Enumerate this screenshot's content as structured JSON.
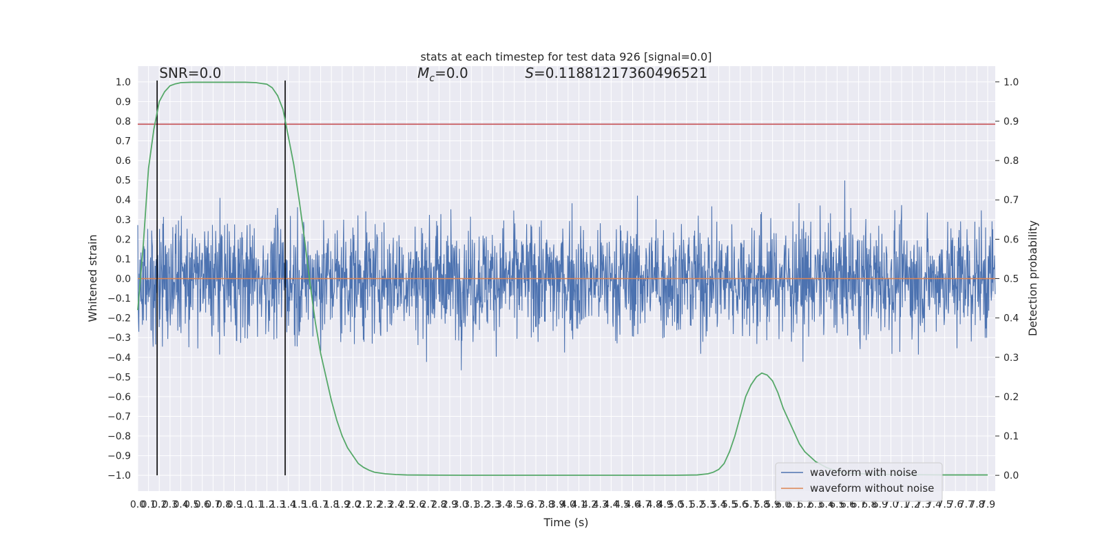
{
  "chart_data": {
    "type": "line",
    "title": "stats at each timestep for test data 926 [signal=0.0]",
    "xlabel": "Time (s)",
    "ylabel_left": "Whitened strain",
    "ylabel_right": "Detection probability",
    "xlim": [
      0.0,
      7.97
    ],
    "ylim_left": [
      -1.08,
      1.08
    ],
    "ylim_right": [
      -0.04,
      1.04
    ],
    "x_ticks": [
      0.0,
      0.1,
      0.2,
      0.3,
      0.4,
      0.5,
      0.6,
      0.7,
      0.8,
      0.9,
      1.0,
      1.1,
      1.2,
      1.3,
      1.4,
      1.5,
      1.6,
      1.7,
      1.8,
      1.9,
      2.0,
      2.1,
      2.2,
      2.3,
      2.4,
      2.5,
      2.6,
      2.7,
      2.8,
      2.9,
      3.0,
      3.1,
      3.2,
      3.3,
      3.4,
      3.5,
      3.6,
      3.7,
      3.8,
      3.9,
      4.0,
      4.1,
      4.2,
      4.3,
      4.4,
      4.5,
      4.6,
      4.7,
      4.8,
      4.9,
      5.0,
      5.1,
      5.2,
      5.3,
      5.4,
      5.5,
      5.6,
      5.7,
      5.8,
      5.9,
      6.0,
      6.1,
      6.2,
      6.3,
      6.4,
      6.5,
      6.6,
      6.7,
      6.8,
      6.9,
      7.0,
      7.1,
      7.2,
      7.3,
      7.4,
      7.5,
      7.6,
      7.7,
      7.8,
      7.9
    ],
    "y_ticks_left": [
      -1.0,
      -0.9,
      -0.8,
      -0.7,
      -0.6,
      -0.5,
      -0.4,
      -0.3,
      -0.2,
      -0.1,
      0.0,
      0.1,
      0.2,
      0.3,
      0.4,
      0.5,
      0.6,
      0.7,
      0.8,
      0.9,
      1.0
    ],
    "y_ticks_right": [
      0.0,
      0.1,
      0.2,
      0.3,
      0.4,
      0.5,
      0.6,
      0.7,
      0.8,
      0.9,
      1.0
    ],
    "grid": true,
    "series": [
      {
        "name": "waveform with noise",
        "color": "#4c72b0",
        "style": "noise",
        "typical_amplitude": 0.45,
        "peak_amplitude": 1.0
      },
      {
        "name": "waveform without noise",
        "color": "#dd8452",
        "x": [
          0.0,
          7.97
        ],
        "y": [
          0.0,
          0.0
        ]
      },
      {
        "name": "",
        "axis": "right",
        "color": "#55a868",
        "x": [
          0.0,
          0.05,
          0.1,
          0.15,
          0.2,
          0.25,
          0.3,
          0.35,
          0.4,
          0.5,
          0.6,
          0.7,
          0.8,
          0.9,
          1.0,
          1.1,
          1.2,
          1.25,
          1.3,
          1.35,
          1.4,
          1.45,
          1.5,
          1.55,
          1.6,
          1.65,
          1.7,
          1.75,
          1.8,
          1.85,
          1.9,
          1.95,
          2.0,
          2.05,
          2.1,
          2.15,
          2.2,
          2.3,
          2.4,
          2.5,
          2.6,
          2.8,
          3.0,
          3.5,
          4.0,
          4.5,
          5.0,
          5.2,
          5.3,
          5.35,
          5.4,
          5.45,
          5.5,
          5.55,
          5.6,
          5.65,
          5.7,
          5.75,
          5.8,
          5.85,
          5.9,
          5.95,
          6.0,
          6.05,
          6.1,
          6.15,
          6.2,
          6.3,
          6.4,
          6.5,
          6.6,
          6.8,
          7.0,
          7.5,
          7.9
        ],
        "y": [
          0.42,
          0.58,
          0.78,
          0.88,
          0.95,
          0.975,
          0.99,
          0.995,
          0.998,
          0.999,
          0.999,
          0.999,
          0.999,
          0.999,
          0.999,
          0.998,
          0.994,
          0.985,
          0.965,
          0.93,
          0.86,
          0.79,
          0.7,
          0.6,
          0.49,
          0.39,
          0.31,
          0.25,
          0.19,
          0.14,
          0.1,
          0.07,
          0.05,
          0.03,
          0.02,
          0.013,
          0.008,
          0.004,
          0.002,
          0.001,
          0.0008,
          0.0005,
          0.0003,
          0.0002,
          0.0002,
          0.0002,
          0.0003,
          0.001,
          0.004,
          0.008,
          0.015,
          0.03,
          0.06,
          0.1,
          0.15,
          0.2,
          0.23,
          0.25,
          0.26,
          0.255,
          0.24,
          0.21,
          0.17,
          0.14,
          0.11,
          0.08,
          0.06,
          0.035,
          0.02,
          0.01,
          0.006,
          0.003,
          0.002,
          0.001,
          0.001
        ]
      }
    ],
    "hlines_left": [
      {
        "y": 0.785,
        "color": "#c44e52"
      }
    ],
    "vlines": [
      {
        "x": 0.18,
        "color": "#000000"
      },
      {
        "x": 1.37,
        "color": "#000000"
      }
    ],
    "annotations": {
      "snr": {
        "label": "SNR=0.0",
        "x": 0.2,
        "y": 1.02
      },
      "mc": {
        "label_prefix": "M",
        "label_sub": "c",
        "label_suffix": "=0.0",
        "x": 2.6,
        "y": 1.02
      },
      "s": {
        "label_prefix": "S",
        "label_suffix": "=0.11881217360496521",
        "x": 3.6,
        "y": 1.02
      }
    },
    "legend": {
      "placement": "lower-right",
      "entries": [
        {
          "label": "waveform with noise",
          "color": "#4c72b0"
        },
        {
          "label": "waveform without noise",
          "color": "#dd8452"
        }
      ]
    }
  }
}
